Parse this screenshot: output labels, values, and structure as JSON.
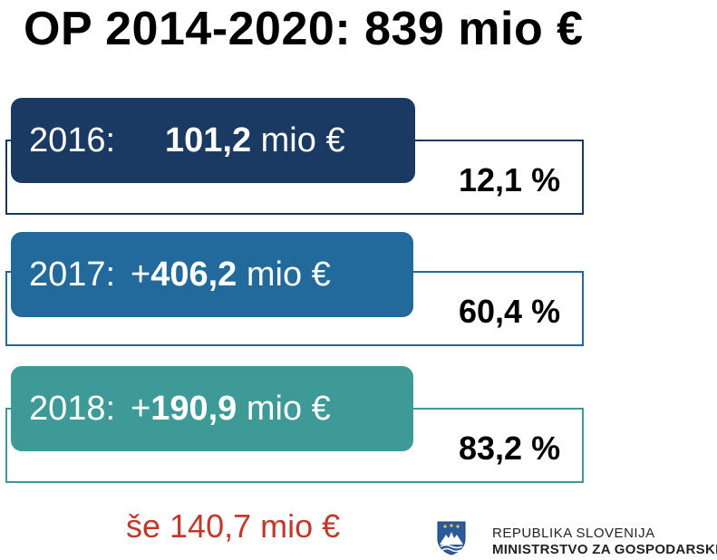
{
  "title": "OP 2014-2020: 839 mio €",
  "rows": [
    {
      "year": "2016:",
      "plus": "",
      "amount": "101,2",
      "unit": "mio €",
      "percent": "12,1 %",
      "fill": "#1a3a63",
      "border": "#1a3a63"
    },
    {
      "year": "2017:",
      "plus": "+ ",
      "amount": "406,2",
      "unit": "mio €",
      "percent": "60,4 %",
      "fill": "#22699c",
      "border": "#22699c"
    },
    {
      "year": "2018:",
      "plus": "+ ",
      "amount": "190,9",
      "unit": "mio €",
      "percent": "83,2 %",
      "fill": "#3d9a97",
      "border": "#3d9a97"
    }
  ],
  "remaining": "še 140,7 mio €",
  "footer": {
    "line1": "REPUBLIKA SLOVENIJA",
    "line2": "MINISTRSTVO ZA GOSPODARSKI"
  }
}
